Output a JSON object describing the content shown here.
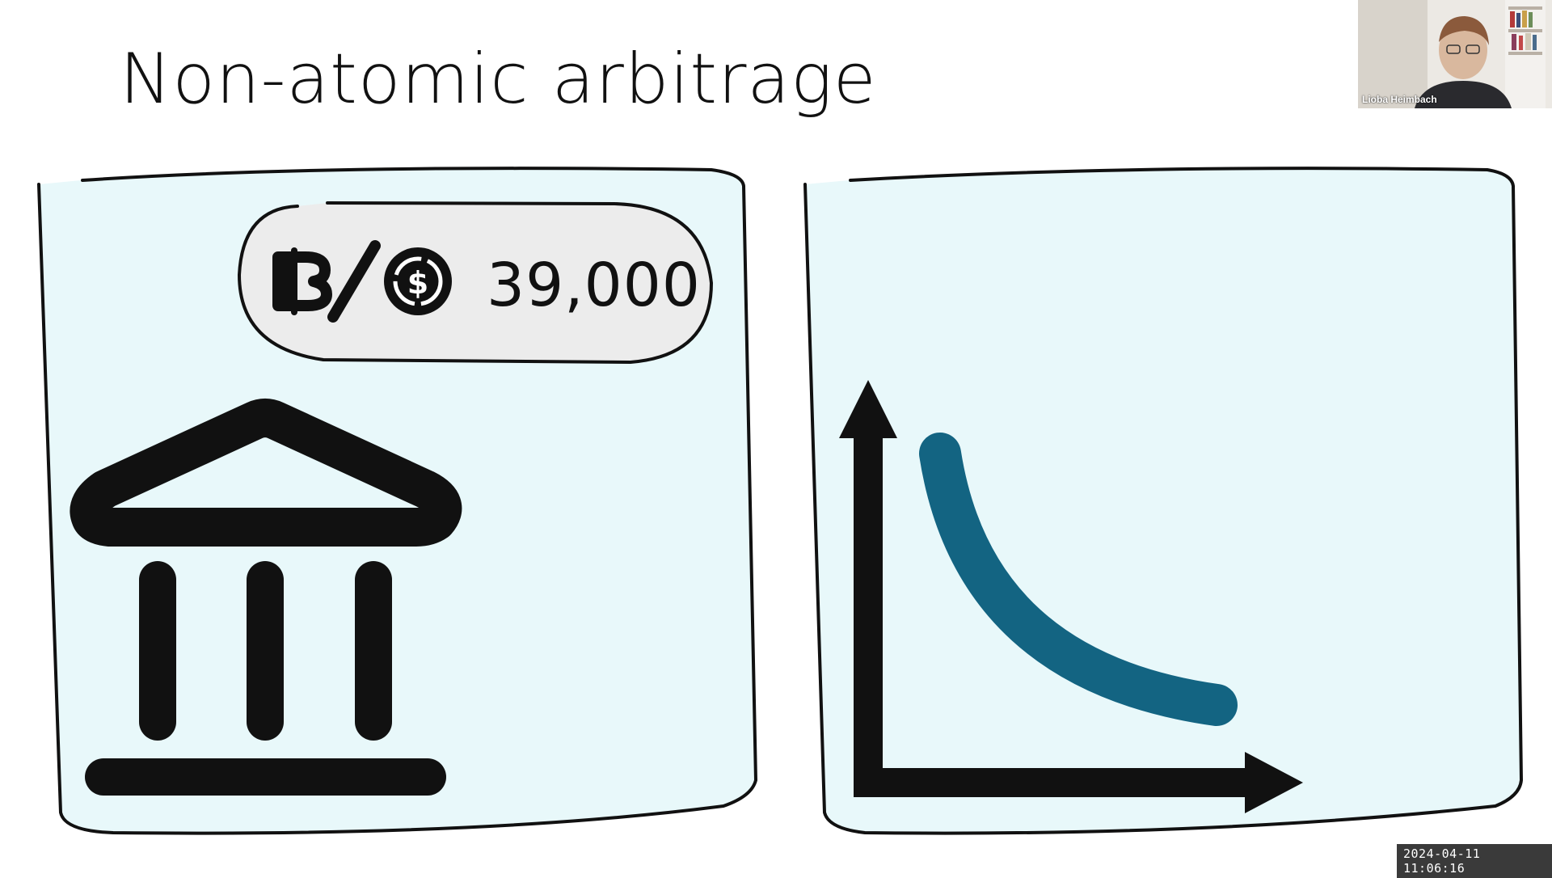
{
  "slide": {
    "title": "Non-atomic arbitrage",
    "left_panel": {
      "price_badge": {
        "base_asset_icon": "bitcoin-icon",
        "quote_asset_icon": "usdc-icon",
        "price": "39,000"
      },
      "icon": "bank-icon"
    },
    "right_panel": {
      "icon": "bonding-curve-icon",
      "curve_color": "#136482"
    },
    "panel_background": "#e8f8fa"
  },
  "video": {
    "participant_name": "Lioba Heimbach"
  },
  "recording": {
    "timestamp": "2024-04-11 11:06:16"
  }
}
